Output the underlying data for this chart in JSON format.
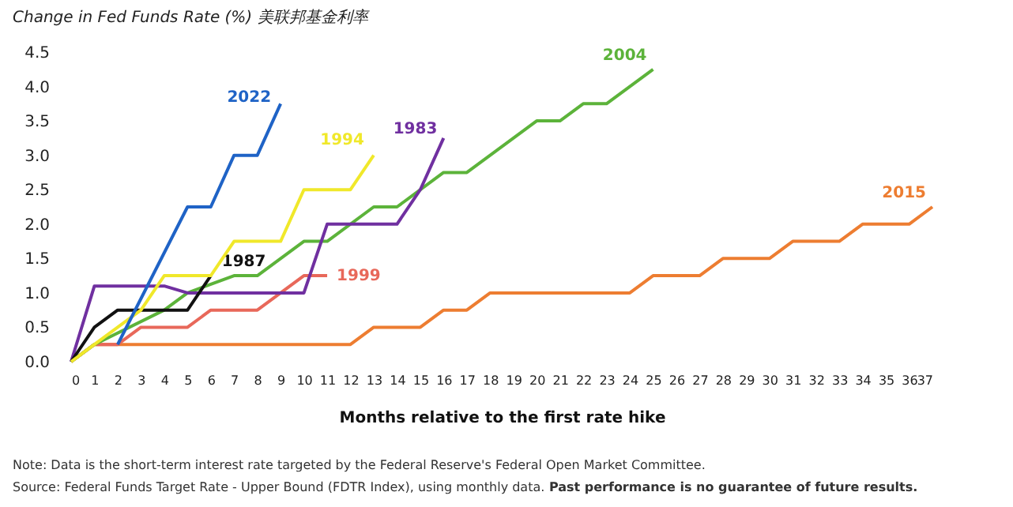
{
  "chart_data": {
    "type": "line",
    "title": "Change in Fed Funds Rate (%) 美联邦基金利率",
    "xlabel": "Months relative to the first rate hike",
    "xlim": [
      0,
      37
    ],
    "xticks": [
      0,
      1,
      2,
      3,
      4,
      5,
      6,
      7,
      8,
      9,
      10,
      11,
      12,
      13,
      14,
      15,
      16,
      17,
      18,
      19,
      20,
      21,
      22,
      23,
      24,
      25,
      26,
      27,
      28,
      29,
      30,
      31,
      32,
      33,
      34,
      35,
      36,
      37
    ],
    "ylim": [
      0,
      4.5
    ],
    "yticks": [
      {
        "value": 0,
        "label": "0.0"
      },
      {
        "value": 0.5,
        "label": "0.5"
      },
      {
        "value": 1,
        "label": "1.0"
      },
      {
        "value": 1.5,
        "label": "1.5"
      },
      {
        "value": 2,
        "label": "2.0"
      },
      {
        "value": 2.5,
        "label": "2.5"
      },
      {
        "value": 3,
        "label": "3.0"
      },
      {
        "value": 3.5,
        "label": "3.5"
      },
      {
        "value": 4,
        "label": "4.0"
      },
      {
        "value": 4.5,
        "label": "4.5"
      }
    ],
    "series": [
      {
        "name": "2015",
        "color": "#ed7d31",
        "x": [
          0,
          1,
          12,
          13,
          15,
          16,
          17,
          18,
          24,
          25,
          27,
          28,
          30,
          31,
          33,
          34,
          36,
          37
        ],
        "values": [
          0,
          0.25,
          0.25,
          0.5,
          0.5,
          0.75,
          0.75,
          1.0,
          1.0,
          1.25,
          1.25,
          1.5,
          1.5,
          1.75,
          1.75,
          2.0,
          2.0,
          2.25
        ]
      },
      {
        "name": "1999",
        "color": "#e8685a",
        "x": [
          0,
          1,
          2,
          3,
          5,
          6,
          8,
          9,
          10,
          11
        ],
        "values": [
          0,
          0.25,
          0.25,
          0.5,
          0.5,
          0.75,
          0.75,
          1.0,
          1.25,
          1.25
        ]
      },
      {
        "name": "2004",
        "color": "#5cb33a",
        "x": [
          0,
          1,
          4,
          5,
          7,
          8,
          10,
          11,
          13,
          14,
          16,
          17,
          20,
          21,
          22,
          23,
          25
        ],
        "values": [
          0,
          0.25,
          0.75,
          1.0,
          1.25,
          1.25,
          1.75,
          1.75,
          2.25,
          2.25,
          2.75,
          2.75,
          3.5,
          3.5,
          3.75,
          3.75,
          4.25
        ]
      },
      {
        "name": "1983",
        "color": "#7030a0",
        "x": [
          0,
          1,
          4,
          5,
          10,
          11,
          14,
          15,
          16
        ],
        "values": [
          0,
          1.1,
          1.1,
          1.0,
          1.0,
          2.0,
          2.0,
          2.5,
          3.25
        ]
      },
      {
        "name": "1987",
        "color": "#111111",
        "x": [
          0,
          1,
          2,
          5,
          6
        ],
        "values": [
          0,
          0.5,
          0.75,
          0.75,
          1.25
        ]
      },
      {
        "name": "1994",
        "color": "#f0e82a",
        "x": [
          0,
          1,
          2,
          3,
          4,
          6,
          7,
          9,
          10,
          12,
          13
        ],
        "values": [
          0,
          0.25,
          0.5,
          0.75,
          1.25,
          1.25,
          1.75,
          1.75,
          2.5,
          2.5,
          3.0
        ]
      },
      {
        "name": "2022",
        "color": "#1f63c6",
        "x": [
          2,
          5,
          6,
          7,
          8,
          9
        ],
        "values": [
          0.25,
          2.25,
          2.25,
          3.0,
          3.0,
          3.75
        ]
      }
    ],
    "annotations": [
      "Note: Data is the short-term interest rate targeted by the Federal Reserve's Federal Open Market Committee.",
      "Source: Federal Funds Target Rate - Upper Bound (FDTR Index), using monthly data.",
      "Past performance is no guarantee of future results."
    ]
  }
}
